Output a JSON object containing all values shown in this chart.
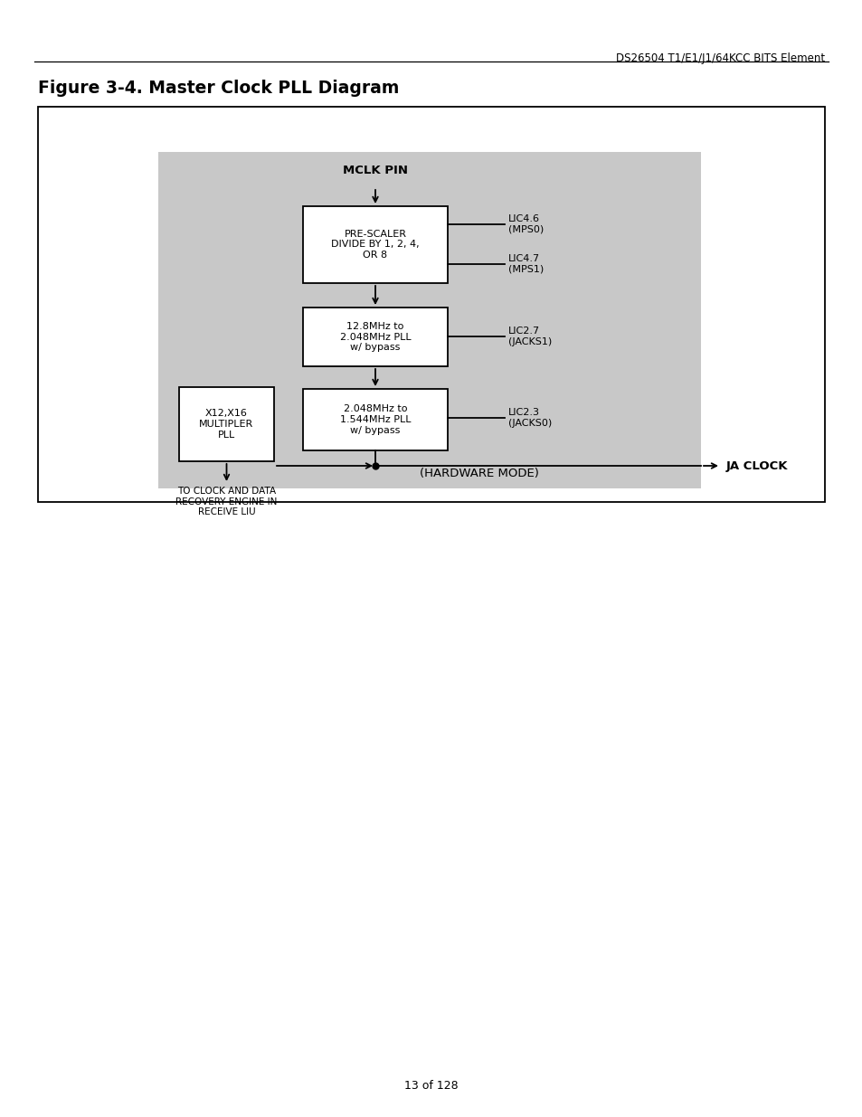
{
  "page_title": "DS26504 T1/E1/J1/64KCC BITS Element",
  "figure_title": "Figure 3-4. Master Clock PLL Diagram",
  "page_number": "13 of 128",
  "bg_color": "#ffffff",
  "gray_bg": "#c8c8c8",
  "prescaler_label": "PRE-SCALER\nDIVIDE BY 1, 2, 4,\nOR 8",
  "pll1_label": "12.8MHz to\n2.048MHz PLL\nw/ bypass",
  "pll2_label": "2.048MHz to\n1.544MHz PLL\nw/ bypass",
  "multiplier_label": "X12,X16\nMULTIPLER\nPLL",
  "lic46_label": "LIC4.6\n(MPS0)",
  "lic47_label": "LIC4.7\n(MPS1)",
  "lic27_label": "LIC2.7\n(JACKS1)",
  "lic23_label": "LIC2.3\n(JACKS0)",
  "ja_clock_label": "JA CLOCK",
  "hw_mode_label": "(HARDWARE MODE)",
  "recover_label": "TO CLOCK AND DATA\nRECOVERY ENGINE IN\nRECEIVE LIU",
  "mclk_pin_label": "MCLK PIN",
  "dpi": 100,
  "fig_w": 9.54,
  "fig_h": 12.35
}
